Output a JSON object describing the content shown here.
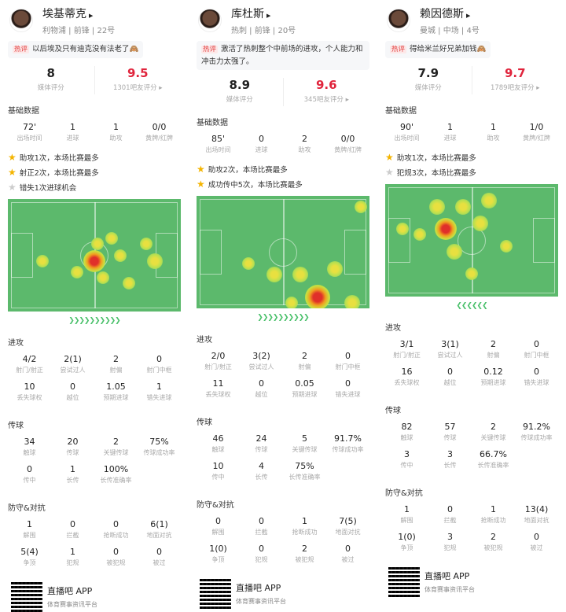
{
  "accent_red": "#e0243c",
  "pitch_color": "#5cb96c",
  "players": [
    {
      "name": "埃基蒂克",
      "info": "利物浦 | 前锋 | 22号",
      "hot": "热评",
      "comment": "以后埃及只有迪克没有法老了🙈",
      "media_score": "8",
      "media_label": "媒体评分",
      "fan_score": "9.5",
      "fan_label": "1301吧友评分 ▸",
      "basic_title": "基础数据",
      "basic": [
        {
          "v": "72'",
          "l": "出场时间"
        },
        {
          "v": "1",
          "l": "进球"
        },
        {
          "v": "1",
          "l": "助攻"
        },
        {
          "v": "0/0",
          "l": "黄牌/红牌"
        }
      ],
      "highlights": [
        {
          "t": "助攻1次，本场比赛最多",
          "star": "gold"
        },
        {
          "t": "射正2次，本场比赛最多",
          "star": "gold"
        },
        {
          "t": "错失1次进球机会",
          "star": "grey"
        }
      ],
      "direction": "right",
      "attack_title": "进攻",
      "attack": [
        {
          "v": "4/2",
          "l": "射门/射正"
        },
        {
          "v": "2(1)",
          "l": "尝试过人"
        },
        {
          "v": "2",
          "l": "射偏"
        },
        {
          "v": "0",
          "l": "射门中框"
        },
        {
          "v": "10",
          "l": "丢失球权"
        },
        {
          "v": "0",
          "l": "越位"
        },
        {
          "v": "1.05",
          "l": "预期进球"
        },
        {
          "v": "1",
          "l": "错失进球"
        }
      ],
      "pass_title": "传球",
      "pass": [
        {
          "v": "34",
          "l": "触球"
        },
        {
          "v": "20",
          "l": "传球"
        },
        {
          "v": "2",
          "l": "关键传球"
        },
        {
          "v": "75%",
          "l": "传球成功率"
        },
        {
          "v": "0",
          "l": "传中"
        },
        {
          "v": "1",
          "l": "长传"
        },
        {
          "v": "100%",
          "l": "长传准确率"
        }
      ],
      "def_title": "防守&对抗",
      "def": [
        {
          "v": "1",
          "l": "解围"
        },
        {
          "v": "0",
          "l": "拦截"
        },
        {
          "v": "0",
          "l": "抢断成功"
        },
        {
          "v": "6(1)",
          "l": "地面对抗"
        },
        {
          "v": "5(4)",
          "l": "争顶"
        },
        {
          "v": "1",
          "l": "犯规"
        },
        {
          "v": "0",
          "l": "被犯规"
        },
        {
          "v": "0",
          "l": "被过"
        }
      ]
    },
    {
      "name": "库杜斯",
      "info": "热刺 | 前锋 | 20号",
      "hot": "热评",
      "comment": "激活了热刺整个中前场的进攻，个人能力和冲击力太强了。",
      "media_score": "8.9",
      "media_label": "媒体评分",
      "fan_score": "9.6",
      "fan_label": "345吧友评分 ▸",
      "basic_title": "基础数据",
      "basic": [
        {
          "v": "85'",
          "l": "出场时间"
        },
        {
          "v": "0",
          "l": "进球"
        },
        {
          "v": "2",
          "l": "助攻"
        },
        {
          "v": "0/0",
          "l": "黄牌/红牌"
        }
      ],
      "highlights": [
        {
          "t": "助攻2次，本场比赛最多",
          "star": "gold"
        },
        {
          "t": "成功传中5次，本场比赛最多",
          "star": "gold"
        }
      ],
      "direction": "right",
      "attack_title": "进攻",
      "attack": [
        {
          "v": "2/0",
          "l": "射门/射正"
        },
        {
          "v": "3(2)",
          "l": "尝试过人"
        },
        {
          "v": "2",
          "l": "射偏"
        },
        {
          "v": "0",
          "l": "射门中框"
        },
        {
          "v": "11",
          "l": "丢失球权"
        },
        {
          "v": "0",
          "l": "越位"
        },
        {
          "v": "0.05",
          "l": "预期进球"
        },
        {
          "v": "0",
          "l": "错失进球"
        }
      ],
      "pass_title": "传球",
      "pass": [
        {
          "v": "46",
          "l": "触球"
        },
        {
          "v": "24",
          "l": "传球"
        },
        {
          "v": "5",
          "l": "关键传球"
        },
        {
          "v": "91.7%",
          "l": "传球成功率"
        },
        {
          "v": "10",
          "l": "传中"
        },
        {
          "v": "4",
          "l": "长传"
        },
        {
          "v": "75%",
          "l": "长传准确率"
        }
      ],
      "def_title": "防守&对抗",
      "def": [
        {
          "v": "0",
          "l": "解围"
        },
        {
          "v": "0",
          "l": "拦截"
        },
        {
          "v": "1",
          "l": "抢断成功"
        },
        {
          "v": "7(5)",
          "l": "地面对抗"
        },
        {
          "v": "1(0)",
          "l": "争顶"
        },
        {
          "v": "0",
          "l": "犯规"
        },
        {
          "v": "2",
          "l": "被犯规"
        },
        {
          "v": "0",
          "l": "被过"
        }
      ]
    },
    {
      "name": "赖因德斯",
      "info": "曼城 | 中场 | 4号",
      "hot": "热评",
      "comment": "得给米兰好兄弟加钱🙈",
      "media_score": "7.9",
      "media_label": "媒体评分",
      "fan_score": "9.7",
      "fan_label": "1789吧友评分 ▸",
      "basic_title": "基础数据",
      "basic": [
        {
          "v": "90'",
          "l": "出场时间"
        },
        {
          "v": "1",
          "l": "进球"
        },
        {
          "v": "1",
          "l": "助攻"
        },
        {
          "v": "1/0",
          "l": "黄牌/红牌"
        }
      ],
      "highlights": [
        {
          "t": "助攻1次，本场比赛最多",
          "star": "gold"
        },
        {
          "t": "犯规3次，本场比赛最多",
          "star": "grey"
        }
      ],
      "direction": "left",
      "attack_title": "进攻",
      "attack": [
        {
          "v": "3/1",
          "l": "射门/射正"
        },
        {
          "v": "3(1)",
          "l": "尝试过人"
        },
        {
          "v": "2",
          "l": "射偏"
        },
        {
          "v": "0",
          "l": "射门中框"
        },
        {
          "v": "16",
          "l": "丢失球权"
        },
        {
          "v": "0",
          "l": "越位"
        },
        {
          "v": "0.12",
          "l": "预期进球"
        },
        {
          "v": "0",
          "l": "错失进球"
        }
      ],
      "pass_title": "传球",
      "pass": [
        {
          "v": "82",
          "l": "触球"
        },
        {
          "v": "57",
          "l": "传球"
        },
        {
          "v": "2",
          "l": "关键传球"
        },
        {
          "v": "91.2%",
          "l": "传球成功率"
        },
        {
          "v": "3",
          "l": "传中"
        },
        {
          "v": "3",
          "l": "长传"
        },
        {
          "v": "66.7%",
          "l": "长传准确率"
        }
      ],
      "def_title": "防守&对抗",
      "def": [
        {
          "v": "1",
          "l": "解围"
        },
        {
          "v": "0",
          "l": "拦截"
        },
        {
          "v": "1",
          "l": "抢断成功"
        },
        {
          "v": "13(4)",
          "l": "地面对抗"
        },
        {
          "v": "1(0)",
          "l": "争顶"
        },
        {
          "v": "3",
          "l": "犯规"
        },
        {
          "v": "2",
          "l": "被犯规"
        },
        {
          "v": "0",
          "l": "被过"
        }
      ]
    }
  ],
  "footer": {
    "app": "直播吧 APP",
    "tagline": "体育赛事资讯平台"
  }
}
